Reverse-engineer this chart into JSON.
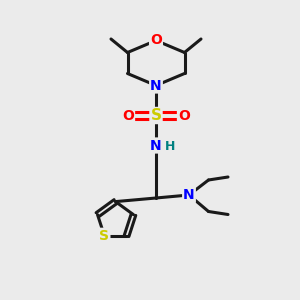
{
  "bg_color": "#ebebeb",
  "bond_color": "#1a1a1a",
  "N_color": "#0000ff",
  "O_color": "#ff0000",
  "S_color": "#cccc00",
  "H_color": "#008080",
  "line_width": 2.2,
  "fig_width": 3.0,
  "fig_height": 3.0,
  "dpi": 100,
  "xlim": [
    0,
    10
  ],
  "ylim": [
    0,
    10
  ]
}
